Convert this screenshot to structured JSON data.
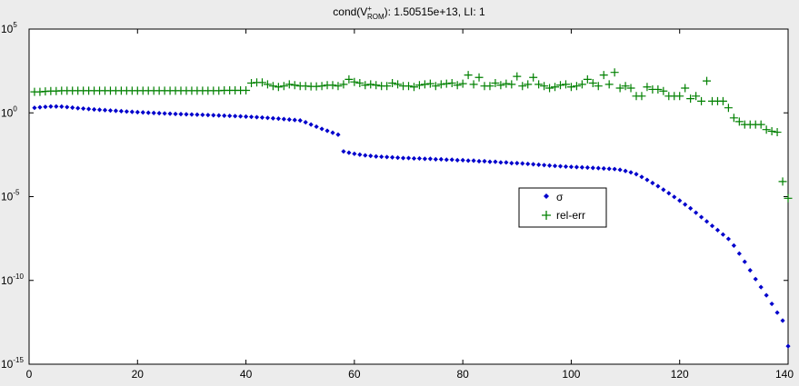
{
  "chart_data": {
    "type": "scatter",
    "title": {
      "prefix": "cond(V",
      "sup": "+",
      "sub": "ROM",
      "suffix": "): 1.50515e+13,  LI: 1"
    },
    "xlabel": "",
    "ylabel": "",
    "xlim": [
      0,
      140
    ],
    "ylim": [
      1e-15,
      100000.0
    ],
    "yscale": "log",
    "grid": false,
    "x_ticks": [
      "0",
      "20",
      "40",
      "60",
      "80",
      "100",
      "120",
      "140"
    ],
    "y_ticks": [
      {
        "base": "10",
        "exp": "5"
      },
      {
        "base": "10",
        "exp": "0"
      },
      {
        "base": "10",
        "exp": "-5"
      },
      {
        "base": "10",
        "exp": "-10"
      },
      {
        "base": "10",
        "exp": "-15"
      }
    ],
    "legend": {
      "placement": "center-right",
      "entries": [
        {
          "label": "σ",
          "marker": "diamond",
          "color": "#0000cc"
        },
        {
          "label": "rel-err",
          "marker": "plus",
          "color": "#008000"
        }
      ]
    },
    "series": [
      {
        "name": "σ",
        "marker": "diamond",
        "color": "#0000cc",
        "x": [
          1,
          2,
          3,
          4,
          5,
          6,
          7,
          8,
          9,
          10,
          11,
          12,
          13,
          14,
          15,
          16,
          17,
          18,
          19,
          20,
          21,
          22,
          23,
          24,
          25,
          26,
          27,
          28,
          29,
          30,
          31,
          32,
          33,
          34,
          35,
          36,
          37,
          38,
          39,
          40,
          41,
          42,
          43,
          44,
          45,
          46,
          47,
          48,
          49,
          50,
          51,
          52,
          53,
          54,
          55,
          56,
          57,
          58,
          59,
          60,
          61,
          62,
          63,
          64,
          65,
          66,
          67,
          68,
          69,
          70,
          71,
          72,
          73,
          74,
          75,
          76,
          77,
          78,
          79,
          80,
          81,
          82,
          83,
          84,
          85,
          86,
          87,
          88,
          89,
          90,
          91,
          92,
          93,
          94,
          95,
          96,
          97,
          98,
          99,
          100,
          101,
          102,
          103,
          104,
          105,
          106,
          107,
          108,
          109,
          110,
          111,
          112,
          113,
          114,
          115,
          116,
          117,
          118,
          119,
          120,
          121,
          122,
          123,
          124,
          125,
          126,
          127,
          128,
          129,
          130,
          131,
          132,
          133,
          134,
          135,
          136,
          137,
          138,
          139,
          140
        ],
        "y": [
          2.0,
          2.14,
          2.27,
          2.4,
          2.4,
          2.35,
          2.2,
          2.05,
          1.9,
          1.8,
          1.7,
          1.6,
          1.52,
          1.45,
          1.38,
          1.32,
          1.26,
          1.2,
          1.15,
          1.1,
          1.06,
          1.02,
          0.98,
          0.95,
          0.92,
          0.89,
          0.86,
          0.84,
          0.82,
          0.8,
          0.78,
          0.76,
          0.74,
          0.72,
          0.7,
          0.68,
          0.66,
          0.64,
          0.62,
          0.6,
          0.575,
          0.55,
          0.525,
          0.5,
          0.475,
          0.45,
          0.425,
          0.4,
          0.375,
          0.35,
          0.275,
          0.2,
          0.15,
          0.11,
          0.085,
          0.065,
          0.05,
          0.005,
          0.0042,
          0.0036,
          0.0032,
          0.0029,
          0.0027,
          0.0025,
          0.0024,
          0.0023,
          0.0022,
          0.0021,
          0.002,
          0.002,
          0.0019,
          0.0019,
          0.0018,
          0.0018,
          0.0017,
          0.0017,
          0.0016,
          0.0016,
          0.0015,
          0.0015,
          0.0014,
          0.0014,
          0.0013,
          0.0013,
          0.0012,
          0.0012,
          0.0011,
          0.0011,
          0.001,
          0.001,
          0.00095,
          0.0009,
          0.00085,
          0.0008,
          0.00076,
          0.00072,
          0.00068,
          0.00065,
          0.00062,
          0.0006,
          0.00058,
          0.00056,
          0.00054,
          0.00052,
          0.0005,
          0.00048,
          0.00046,
          0.00044,
          0.0004,
          0.00034,
          0.00028,
          0.00022,
          0.00015,
          0.0001,
          6.5e-05,
          4.2e-05,
          2.6e-05,
          1.6e-05,
          9.6e-06,
          5.8e-06,
          3.4e-06,
          2e-06,
          1.1e-06,
          6e-07,
          3.3e-07,
          1.8e-07,
          1e-07,
          5.5e-08,
          3e-08,
          1.2e-08,
          4e-09,
          1.3e-09,
          4e-10,
          1.2e-10,
          4e-11,
          1.3e-11,
          4e-12,
          1.2e-12,
          4e-13,
          1.2e-14
        ]
      },
      {
        "name": "rel-err",
        "marker": "plus",
        "color": "#008000",
        "x": [
          1,
          2,
          3,
          4,
          5,
          6,
          7,
          8,
          9,
          10,
          11,
          12,
          13,
          14,
          15,
          16,
          17,
          18,
          19,
          20,
          21,
          22,
          23,
          24,
          25,
          26,
          27,
          28,
          29,
          30,
          31,
          32,
          33,
          34,
          35,
          36,
          37,
          38,
          39,
          40,
          41,
          42,
          43,
          44,
          45,
          46,
          47,
          48,
          49,
          50,
          51,
          52,
          53,
          54,
          55,
          56,
          57,
          58,
          59,
          60,
          61,
          62,
          63,
          64,
          65,
          66,
          67,
          68,
          69,
          70,
          71,
          72,
          73,
          74,
          75,
          76,
          77,
          78,
          79,
          80,
          81,
          82,
          83,
          84,
          85,
          86,
          87,
          88,
          89,
          90,
          91,
          92,
          93,
          94,
          95,
          96,
          97,
          98,
          99,
          100,
          101,
          102,
          103,
          104,
          105,
          106,
          107,
          108,
          109,
          110,
          111,
          112,
          113,
          114,
          115,
          116,
          117,
          118,
          119,
          120,
          121,
          122,
          123,
          124,
          125,
          126,
          127,
          128,
          129,
          130,
          131,
          132,
          133,
          134,
          135,
          136,
          137,
          138,
          139,
          140
        ],
        "y": [
          18,
          18,
          19,
          20,
          20,
          21,
          21,
          21,
          21,
          21,
          21,
          21,
          21,
          21,
          21,
          21,
          21,
          21,
          21,
          21,
          21,
          21,
          21,
          21,
          21,
          21,
          21,
          21,
          21,
          21,
          21,
          21,
          21,
          21,
          21,
          22,
          22,
          22,
          22,
          22,
          60,
          65,
          65,
          50,
          40,
          35,
          40,
          50,
          45,
          40,
          40,
          38,
          38,
          40,
          45,
          45,
          40,
          50,
          100,
          70,
          60,
          45,
          50,
          45,
          40,
          40,
          60,
          50,
          40,
          40,
          35,
          45,
          50,
          55,
          40,
          50,
          55,
          60,
          45,
          55,
          180,
          50,
          130,
          40,
          40,
          60,
          45,
          55,
          50,
          150,
          40,
          50,
          130,
          50,
          40,
          30,
          35,
          45,
          50,
          35,
          40,
          50,
          100,
          60,
          40,
          180,
          50,
          260,
          30,
          40,
          30,
          10,
          10,
          35,
          25,
          25,
          20,
          10,
          10,
          10,
          30,
          7,
          10,
          5,
          80,
          5,
          5,
          5,
          2,
          0.5,
          0.3,
          0.2,
          0.2,
          0.2,
          0.2,
          0.1,
          0.08,
          0.07,
          8e-05,
          8e-06
        ]
      }
    ]
  }
}
